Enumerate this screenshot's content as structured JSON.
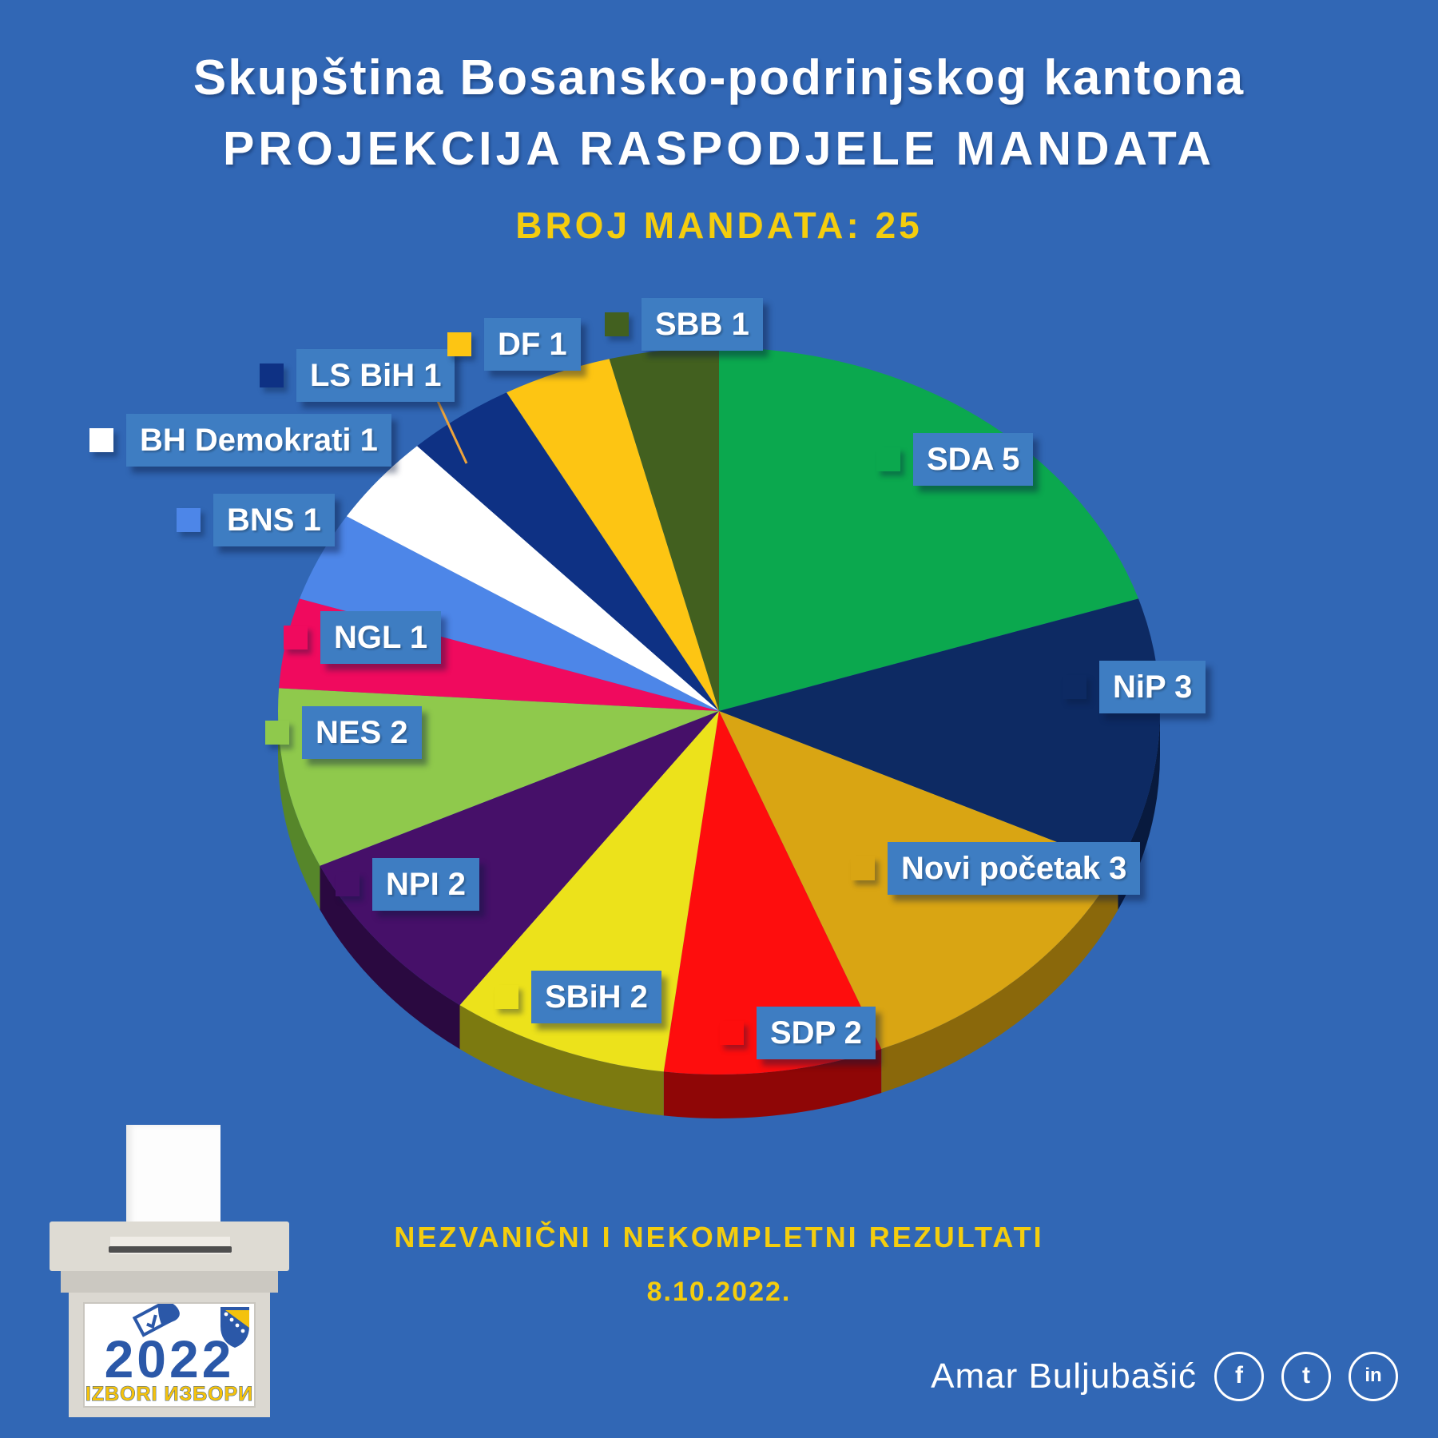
{
  "header": {
    "title": "Skupština Bosansko-podrinjskog kantona",
    "subtitle": "PROJEKCIJA RASPODJELE MANDATA",
    "mandates_label": "BROJ MANDATA: 25"
  },
  "chart_data": {
    "type": "pie",
    "title": "PROJEKCIJA RASPODJELE MANDATA",
    "total_mandates": 25,
    "start_angle": "12-oclock",
    "direction": "clockwise",
    "style": "3d",
    "slices": [
      {
        "label": "SDA",
        "value": 5,
        "label_text": "SDA 5",
        "color": "#0ba84e",
        "side_color": "#066b30"
      },
      {
        "label": "NiP",
        "value": 3,
        "label_text": "NiP 3",
        "color": "#0d2a63",
        "side_color": "#081a3e"
      },
      {
        "label": "Novi početak",
        "value": 3,
        "label_text": "Novi početak 3",
        "color": "#d9a513",
        "side_color": "#8a680b"
      },
      {
        "label": "SDP",
        "value": 2,
        "label_text": "SDP 2",
        "color": "#fe0d0d",
        "side_color": "#8f0606"
      },
      {
        "label": "SBiH",
        "value": 2,
        "label_text": "SBiH 2",
        "color": "#ece21b",
        "side_color": "#7c7a10"
      },
      {
        "label": "NPI",
        "value": 2,
        "label_text": "NPI 2",
        "color": "#461069",
        "side_color": "#2a0940"
      },
      {
        "label": "NES",
        "value": 2,
        "label_text": "NES 2",
        "color": "#8fc94c",
        "side_color": "#56862a"
      },
      {
        "label": "NGL",
        "value": 1,
        "label_text": "NGL 1",
        "color": "#f00a5e",
        "side_color": "#96063a"
      },
      {
        "label": "BNS",
        "value": 1,
        "label_text": "BNS 1",
        "color": "#4d86e8",
        "side_color": "#2d54a0"
      },
      {
        "label": "BH Demokrati",
        "value": 1,
        "label_text": "BH Demokrati 1",
        "color": "#ffffff",
        "side_color": "#b8b8b8"
      },
      {
        "label": "LS BiH",
        "value": 1,
        "label_text": "LS BiH 1",
        "color": "#0e3184",
        "side_color": "#081d52"
      },
      {
        "label": "DF",
        "value": 1,
        "label_text": "DF 1",
        "color": "#fdc513",
        "side_color": "#a67f0a"
      },
      {
        "label": "SBB",
        "value": 1,
        "label_text": "SBB 1",
        "color": "#42601f",
        "side_color": "#283a12"
      }
    ]
  },
  "footer": {
    "note": "NEZVANIČNI I NEKOMPLETNI REZULTATI",
    "date": "8.10.2022.",
    "credit": "Amar Buljubašić",
    "social": [
      {
        "name": "facebook",
        "glyph": "f"
      },
      {
        "name": "twitter",
        "glyph": "t"
      },
      {
        "name": "linkedin",
        "glyph": "in"
      }
    ]
  },
  "logo": {
    "year": "2022",
    "caption": "IZBORI ИЗБОРИ"
  },
  "colors": {
    "background": "#3167b5",
    "label_box": "#3e7dc2",
    "accent_yellow": "#f4cd0e",
    "logo_blue": "#2b58a8",
    "leader_line": "#eda43b"
  }
}
